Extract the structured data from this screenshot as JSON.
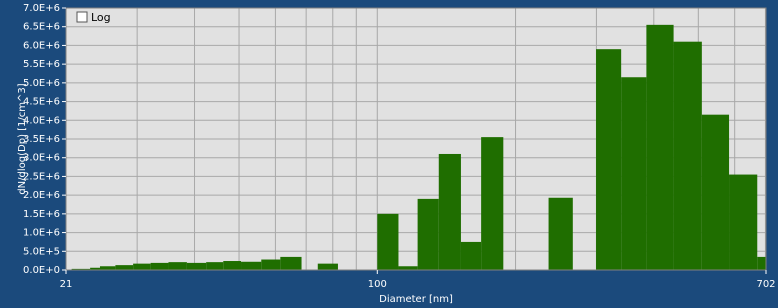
{
  "chart_data": {
    "type": "histogram",
    "x_label": "Diameter [nm]",
    "y_label": "dN/dlog(Dp) [1/cm^3]",
    "checkbox_label": "Log",
    "log_y": false,
    "log_x": true,
    "grid": true,
    "color": "#1f6e00",
    "bins": [
      21.6,
      23.7,
      24.9,
      26.9,
      29.4,
      32.1,
      35.1,
      38.5,
      42.4,
      46.2,
      50.5,
      55.9,
      61.5,
      68.4,
      74.2,
      82.1,
      90.4,
      100,
      111.2,
      122.4,
      136.1,
      152.1,
      168.3,
      188.1,
      210.2,
      236.0,
      266.5,
      299.4,
      339.6,
      385.4,
      441.7,
      508.9,
      583.3,
      671.9,
      702
    ],
    "values": [
      30000,
      60000,
      100000,
      130000,
      170000,
      190000,
      210000,
      190000,
      210000,
      240000,
      220000,
      280000,
      350000,
      0,
      170000,
      0,
      0,
      1500000,
      100000,
      1900000,
      3100000,
      750000,
      3550000,
      0,
      0,
      1930000,
      0,
      5900000,
      5150000,
      6550000,
      6100000,
      4150000,
      2550000,
      350000
    ],
    "xlim": [
      21,
      702
    ],
    "xticks": [
      21,
      100,
      702
    ],
    "x_minor_grid": [
      30,
      40,
      50,
      60,
      70,
      80,
      90,
      200,
      300,
      400,
      500,
      600,
      700
    ],
    "ylim": [
      0,
      7000000
    ],
    "yticks": [
      {
        "value": 0,
        "label": "0.0E+0"
      },
      {
        "value": 500000,
        "label": "5.0E+5"
      },
      {
        "value": 1000000,
        "label": "1.0E+6"
      },
      {
        "value": 1500000,
        "label": "1.5E+6"
      },
      {
        "value": 2000000,
        "label": "2.0E+6"
      },
      {
        "value": 2500000,
        "label": "2.5E+6"
      },
      {
        "value": 3000000,
        "label": "3.0E+6"
      },
      {
        "value": 3500000,
        "label": "3.5E+6"
      },
      {
        "value": 4000000,
        "label": "4.0E+6"
      },
      {
        "value": 4500000,
        "label": "4.5E+6"
      },
      {
        "value": 5000000,
        "label": "5.0E+6"
      },
      {
        "value": 5500000,
        "label": "5.5E+6"
      },
      {
        "value": 6000000,
        "label": "6.0E+6"
      },
      {
        "value": 6500000,
        "label": "6.5E+6"
      },
      {
        "value": 7000000,
        "label": "7.0E+6"
      }
    ]
  }
}
